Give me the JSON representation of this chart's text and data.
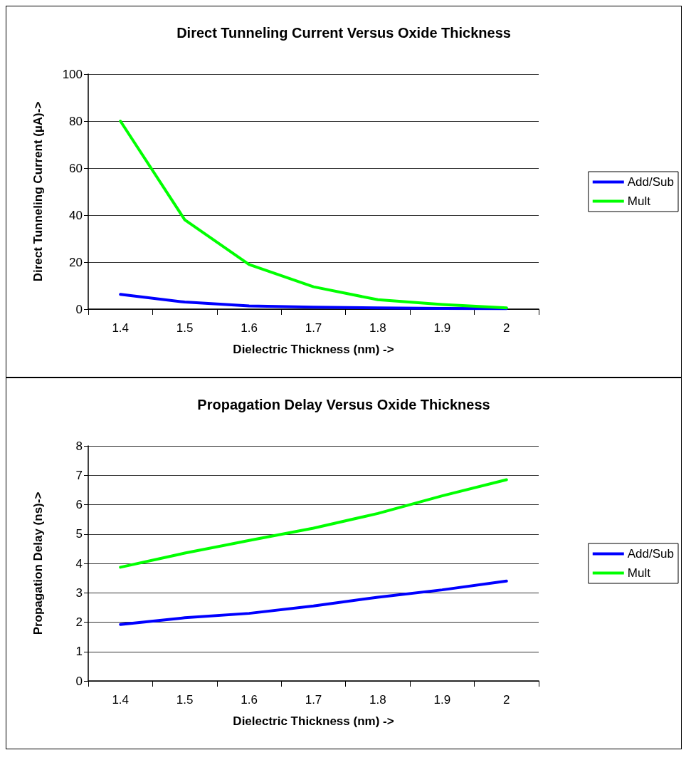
{
  "chart_data": [
    {
      "type": "line",
      "title": "Direct Tunneling Current Versus Oxide Thickness",
      "xlabel": "Dielectric Thickness (nm) ->",
      "ylabel": "Direct Tunneling Current (µA)->",
      "categories": [
        "1.4",
        "1.5",
        "1.6",
        "1.7",
        "1.8",
        "1.9",
        "2"
      ],
      "series": [
        {
          "name": "Add/Sub",
          "color": "#0000ff",
          "values": [
            6.3,
            3,
            1.4,
            0.8,
            0.5,
            0.3,
            0.2
          ]
        },
        {
          "name": "Mult",
          "color": "#00ff00",
          "values": [
            80,
            38,
            19,
            9.5,
            4,
            2,
            0.5
          ]
        }
      ],
      "ylim": [
        0,
        100
      ],
      "yticks": [
        0,
        20,
        40,
        60,
        80,
        100
      ],
      "grid": "y",
      "legend": "right",
      "marker": "none"
    },
    {
      "type": "line",
      "title": "Propagation Delay Versus Oxide Thickness",
      "xlabel": "Dielectric Thickness (nm) ->",
      "ylabel": "Propagation Delay (ns)->",
      "categories": [
        "1.4",
        "1.5",
        "1.6",
        "1.7",
        "1.8",
        "1.9",
        "2"
      ],
      "series": [
        {
          "name": "Add/Sub",
          "color": "#0000ff",
          "values": [
            1.92,
            2.15,
            2.3,
            2.55,
            2.85,
            3.1,
            3.4
          ]
        },
        {
          "name": "Mult",
          "color": "#00ff00",
          "values": [
            3.87,
            4.35,
            4.78,
            5.2,
            5.7,
            6.3,
            6.85
          ]
        }
      ],
      "ylim": [
        0,
        8
      ],
      "yticks": [
        0,
        1,
        2,
        3,
        4,
        5,
        6,
        7,
        8
      ],
      "grid": "y",
      "legend": "right",
      "marker": "none"
    }
  ]
}
